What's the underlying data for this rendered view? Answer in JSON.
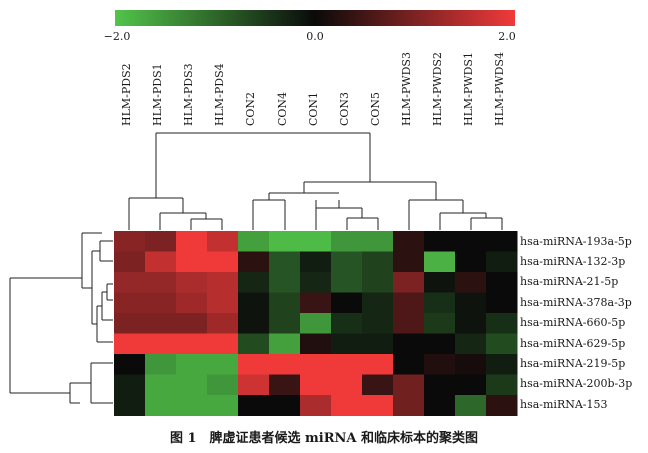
{
  "chart_data": {
    "type": "heatmap",
    "title": "图 1　脾虚证患者候选 miRNA 和临床标本的聚类图",
    "colorbar": {
      "min": -2.0,
      "max": 2.0,
      "ticks": [
        "−2.0",
        "0.0",
        "2.0"
      ],
      "colors": {
        "low": "#52c44a",
        "mid": "#0a0a0a",
        "high": "#f03a3a"
      }
    },
    "columns": [
      "HLM-PDS2",
      "HLM-PDS1",
      "HLM-PDS3",
      "HLM-PDS4",
      "CON2",
      "CON4",
      "CON1",
      "CON3",
      "CON5",
      "HLM-PWDS3",
      "HLM-PWDS2",
      "HLM-PWDS1",
      "HLM-PWDS4"
    ],
    "rows": [
      "hsa-miRNA-193a-5p",
      "hsa-miRNA-132-3p",
      "hsa-miRNA-21-5p",
      "hsa-miRNA-378a-3p",
      "hsa-miRNA-660-5p",
      "hsa-miRNA-629-5p",
      "hsa-miRNA-219-5p",
      "hsa-miRNA-200b-3p",
      "hsa-miRNA-153"
    ],
    "values": [
      [
        1.1,
        1.0,
        2.0,
        1.6,
        -1.6,
        -1.9,
        -1.9,
        -1.5,
        -1.5,
        0.3,
        0.0,
        0.0,
        0.0
      ],
      [
        1.0,
        1.6,
        2.0,
        2.0,
        0.3,
        -0.8,
        -0.2,
        -0.8,
        -0.6,
        0.3,
        -1.8,
        0.0,
        -0.2
      ],
      [
        1.2,
        1.2,
        1.4,
        1.5,
        -0.3,
        -0.8,
        -0.3,
        -0.8,
        -0.6,
        1.0,
        -0.1,
        0.3,
        0.0
      ],
      [
        1.1,
        1.1,
        1.3,
        1.5,
        -0.1,
        -0.6,
        0.4,
        0.0,
        -0.3,
        0.6,
        -0.4,
        -0.1,
        0.0
      ],
      [
        1.0,
        1.0,
        1.0,
        1.3,
        -0.1,
        -0.6,
        -1.5,
        -0.4,
        -0.3,
        0.6,
        -0.5,
        -0.1,
        -0.4
      ],
      [
        2.0,
        2.0,
        2.0,
        2.0,
        -0.7,
        -1.6,
        0.2,
        -0.2,
        -0.2,
        0.0,
        0.0,
        -0.3,
        -0.7
      ],
      [
        0.0,
        -1.5,
        -1.7,
        -1.7,
        2.0,
        2.0,
        2.0,
        2.0,
        2.0,
        0.0,
        0.2,
        0.1,
        -0.2
      ],
      [
        -0.2,
        -1.7,
        -1.7,
        -1.5,
        1.7,
        0.4,
        2.0,
        2.0,
        0.4,
        0.9,
        0.0,
        0.0,
        -0.5
      ],
      [
        -0.2,
        -1.7,
        -1.7,
        -1.7,
        0.0,
        0.0,
        1.4,
        2.0,
        2.0,
        0.9,
        0.0,
        -1.0,
        0.3
      ]
    ]
  }
}
